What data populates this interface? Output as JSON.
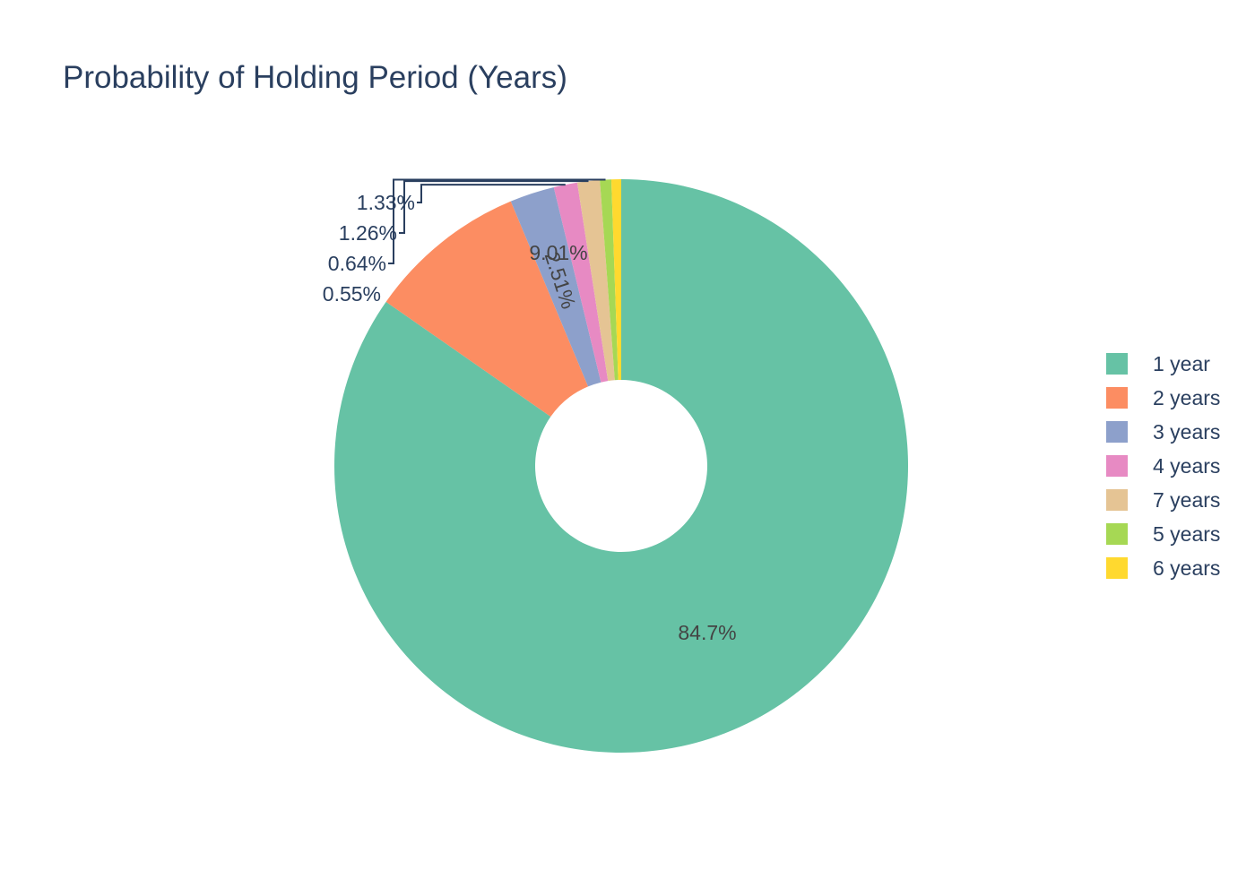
{
  "chart_data": {
    "type": "pie",
    "title": "Probability of Holding Period (Years)",
    "hole": true,
    "legend_position": "right",
    "slices": [
      {
        "label": "1 year",
        "value": 84.7,
        "text": "84.7%",
        "color": "#66c2a5",
        "text_color": "#444444"
      },
      {
        "label": "2 years",
        "value": 9.01,
        "text": "9.01%",
        "color": "#fc8d62",
        "text_color": "#444444"
      },
      {
        "label": "3 years",
        "value": 2.51,
        "text": "2.51%",
        "color": "#8da0cb",
        "text_color": "#444444"
      },
      {
        "label": "4 years",
        "value": 1.33,
        "text": "1.33%",
        "color": "#e78ac3",
        "text_color": "#2a3f5f"
      },
      {
        "label": "7 years",
        "value": 1.26,
        "text": "1.26%",
        "color": "#e5c494",
        "text_color": "#2a3f5f"
      },
      {
        "label": "5 years",
        "value": 0.64,
        "text": "0.64%",
        "color": "#a6d854",
        "text_color": "#2a3f5f"
      },
      {
        "label": "6 years",
        "value": 0.55,
        "text": "0.55%",
        "color": "#ffd92f",
        "text_color": "#2a3f5f"
      }
    ]
  }
}
